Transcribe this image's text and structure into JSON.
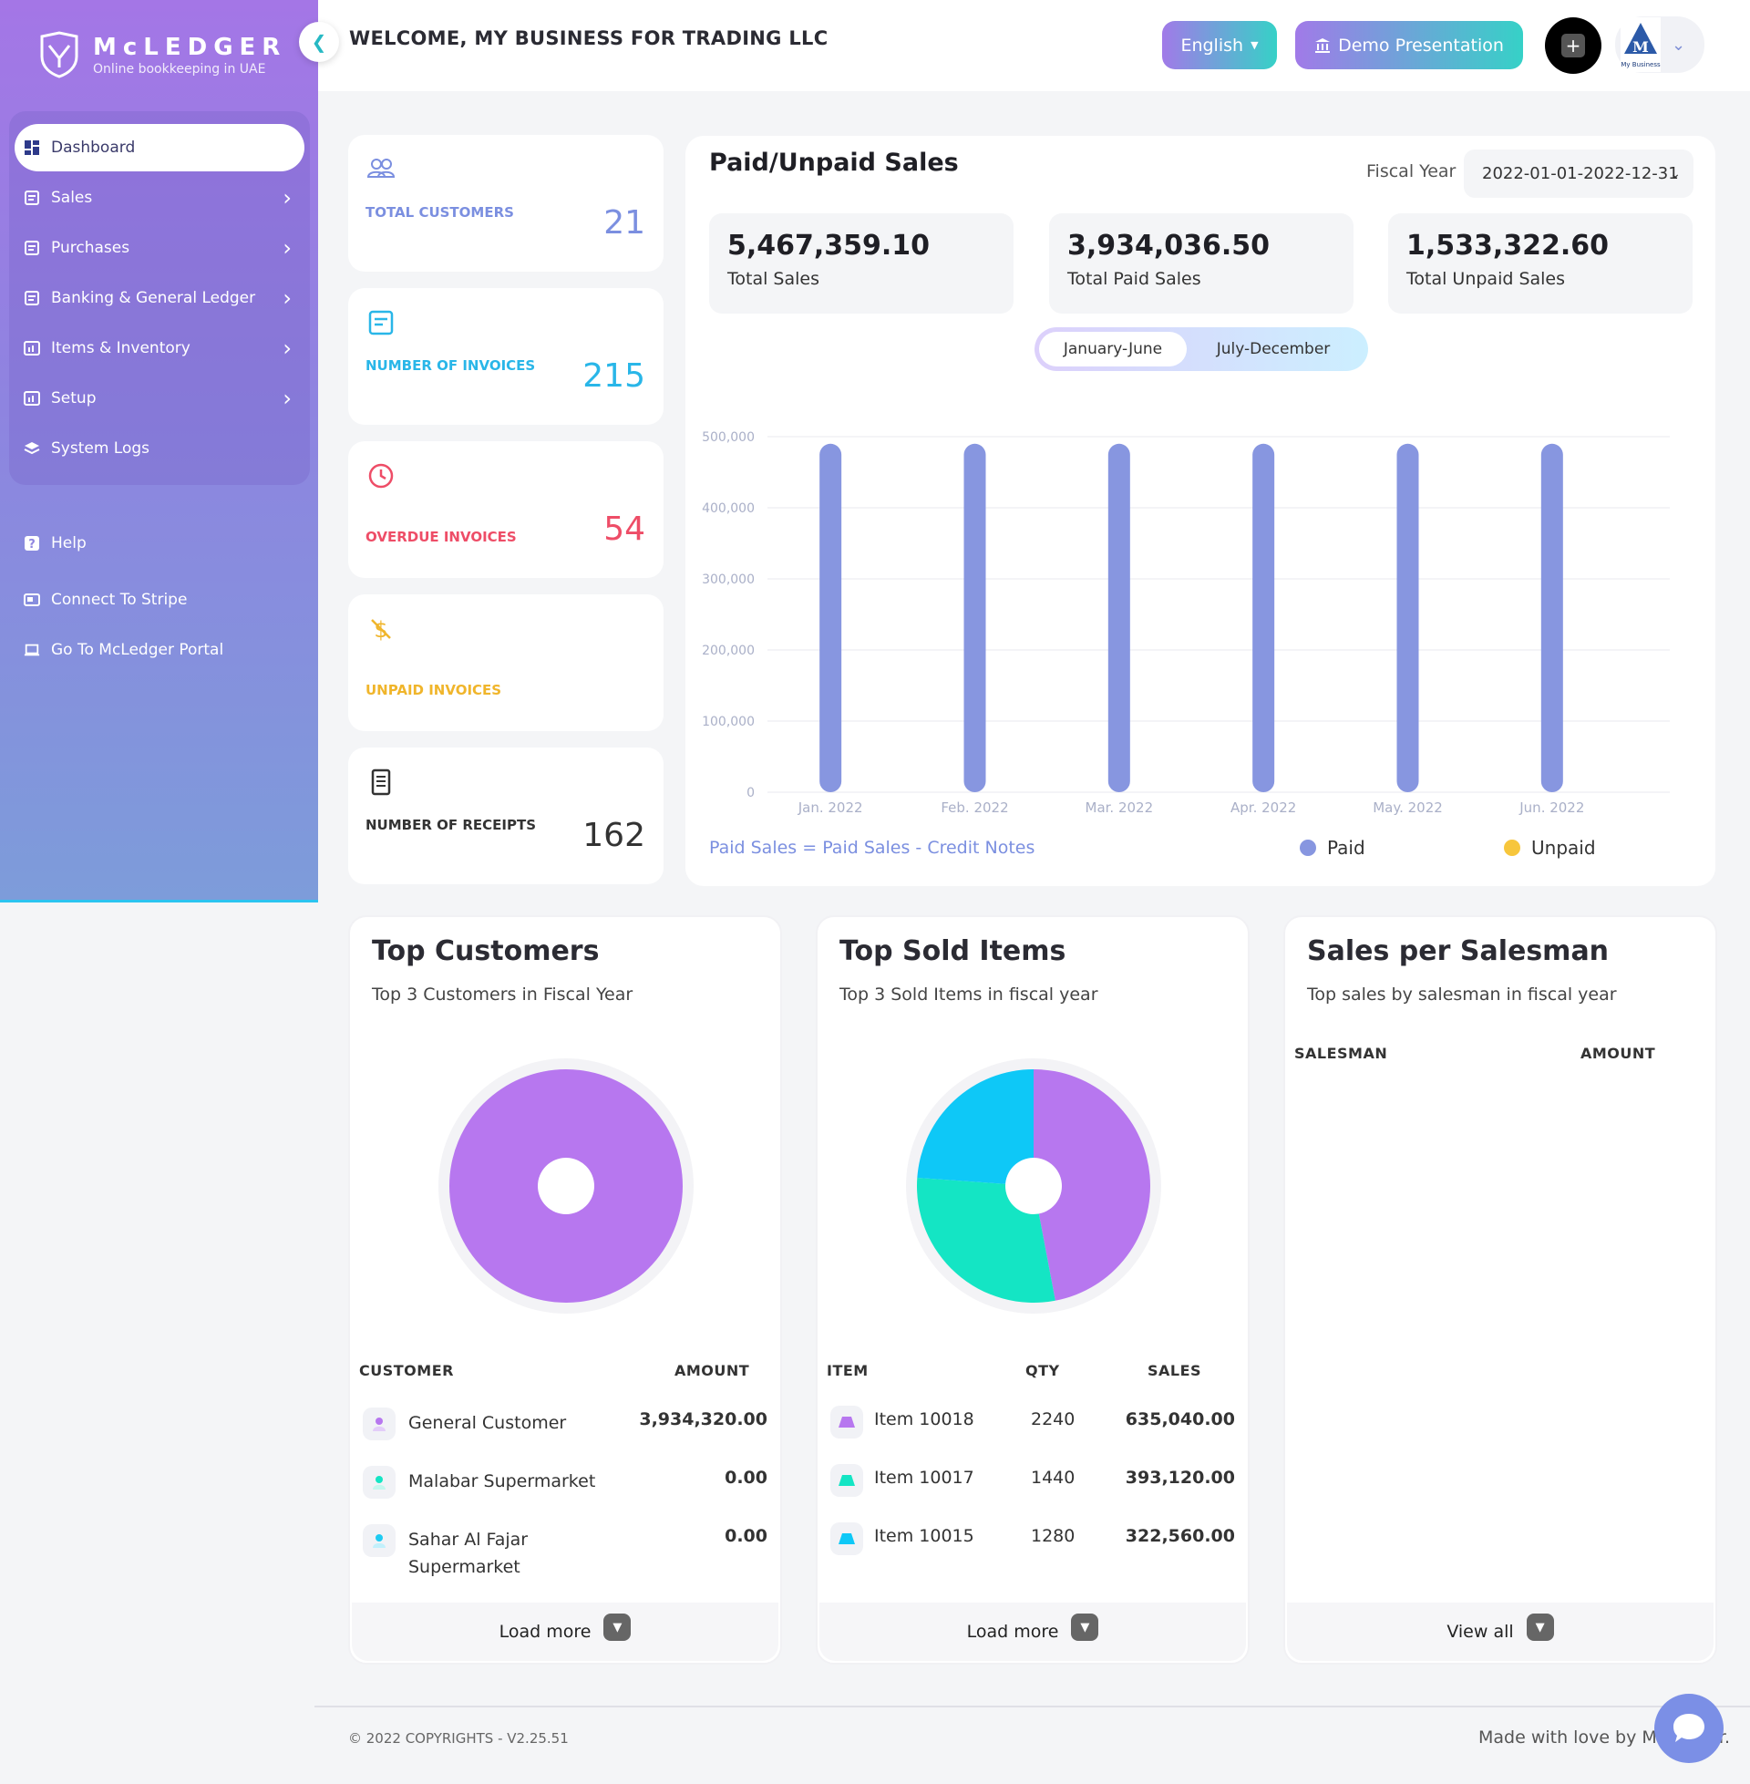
{
  "brand": {
    "name": "McLEDGER",
    "tagline": "Online bookkeeping in UAE"
  },
  "sidebar": {
    "items": [
      {
        "label": "Dashboard",
        "icon": "dashboard-icon",
        "active": true,
        "has_children": false
      },
      {
        "label": "Sales",
        "icon": "document-icon",
        "active": false,
        "has_children": true
      },
      {
        "label": "Purchases",
        "icon": "document-icon",
        "active": false,
        "has_children": true
      },
      {
        "label": "Banking & General Ledger",
        "icon": "document-icon",
        "active": false,
        "has_children": true
      },
      {
        "label": "Items & Inventory",
        "icon": "chart-box-icon",
        "active": false,
        "has_children": true
      },
      {
        "label": "Setup",
        "icon": "chart-box-icon",
        "active": false,
        "has_children": true
      },
      {
        "label": "System Logs",
        "icon": "layers-icon",
        "active": false,
        "has_children": false
      }
    ],
    "extra": [
      {
        "label": "Help",
        "icon": "help-icon"
      },
      {
        "label": "Connect To Stripe",
        "icon": "card-icon"
      },
      {
        "label": "Go To McLedger Portal",
        "icon": "laptop-icon"
      }
    ]
  },
  "header": {
    "welcome": "WELCOME, MY BUSINESS FOR TRADING LLC",
    "language": "English",
    "demo": "Demo Presentation",
    "account_logo_text": "My Business"
  },
  "stats": [
    {
      "label": "TOTAL CUSTOMERS",
      "value": "21",
      "color": "#7b8fe0",
      "icon": "users-icon"
    },
    {
      "label": "NUMBER OF INVOICES",
      "value": "215",
      "color": "#29b6e8",
      "icon": "invoice-icon"
    },
    {
      "label": "OVERDUE INVOICES",
      "value": "54",
      "color": "#ee4d67",
      "icon": "clock-icon"
    },
    {
      "label": "UNPAID INVOICES",
      "value": "",
      "color": "#f0b52b",
      "icon": "dollar-off-icon"
    },
    {
      "label": "NUMBER OF RECEIPTS",
      "value": "162",
      "color": "#333333",
      "icon": "receipt-icon"
    }
  ],
  "sales_panel": {
    "title": "Paid/Unpaid Sales",
    "fiscal_label": "Fiscal Year",
    "fiscal_value": "2022-01-01-2022-12-31",
    "kpis": [
      {
        "value": "5,467,359.10",
        "label": "Total Sales"
      },
      {
        "value": "3,934,036.50",
        "label": "Total Paid Sales"
      },
      {
        "value": "1,533,322.60",
        "label": "Total Unpaid Sales"
      }
    ],
    "toggle": [
      "January-June",
      "July-December"
    ],
    "note": "Paid Sales = Paid Sales - Credit Notes",
    "legend": [
      {
        "label": "Paid",
        "color": "#8796e0"
      },
      {
        "label": "Unpaid",
        "color": "#f7c63c"
      }
    ]
  },
  "chart_data": {
    "type": "bar",
    "categories": [
      "Jan. 2022",
      "Feb. 2022",
      "Mar. 2022",
      "Apr. 2022",
      "May. 2022",
      "Jun. 2022"
    ],
    "series": [
      {
        "name": "Paid",
        "values": [
          490000,
          490000,
          490000,
          490000,
          490000,
          490000
        ]
      },
      {
        "name": "Unpaid",
        "values": [
          0,
          0,
          0,
          0,
          0,
          0
        ]
      }
    ],
    "yticks": [
      "0",
      "100,000",
      "200,000",
      "300,000",
      "400,000",
      "500,000"
    ],
    "ylim": [
      0,
      500000
    ],
    "grid": true,
    "legend": "bottom-right"
  },
  "top_customers": {
    "title": "Top Customers",
    "subtitle": "Top 3 Customers in Fiscal Year",
    "headers": [
      "CUSTOMER",
      "AMOUNT"
    ],
    "rows": [
      {
        "name": "General Customer",
        "amount": "3,934,320.00",
        "color": "#b777ef"
      },
      {
        "name": "Malabar Supermarket",
        "amount": "0.00",
        "color": "#14e5c4"
      },
      {
        "name": "Sahar Al Fajar Supermarket",
        "amount": "0.00",
        "color": "#1ecbf2"
      }
    ],
    "pie": [
      {
        "label": "General Customer",
        "value": 3934320,
        "color": "#b777ef"
      }
    ],
    "load_more": "Load more"
  },
  "top_items": {
    "title": "Top Sold Items",
    "subtitle": "Top 3 Sold Items in fiscal year",
    "headers": [
      "ITEM",
      "QTY",
      "SALES"
    ],
    "rows": [
      {
        "name": "Item 10018",
        "qty": "2240",
        "sales": "635,040.00",
        "color": "#b777ef"
      },
      {
        "name": "Item 10017",
        "qty": "1440",
        "sales": "393,120.00",
        "color": "#14e5c4"
      },
      {
        "name": "Item 10015",
        "qty": "1280",
        "sales": "322,560.00",
        "color": "#0ec8f7"
      }
    ],
    "pie": [
      {
        "label": "Item 10018",
        "value": 635040,
        "color": "#b777ef"
      },
      {
        "label": "Item 10017",
        "value": 393120,
        "color": "#14e5c4"
      },
      {
        "label": "Item 10015",
        "value": 322560,
        "color": "#0ec8f7"
      }
    ],
    "load_more": "Load more"
  },
  "salesman": {
    "title": "Sales per Salesman",
    "subtitle": "Top sales by salesman in fiscal year",
    "headers": [
      "SALESMAN",
      "AMOUNT"
    ],
    "view_all": "View all"
  },
  "footer": {
    "copyright": "© 2022 COPYRIGHTS - V2.25.51",
    "madeby": "Made with love by McLedger."
  }
}
